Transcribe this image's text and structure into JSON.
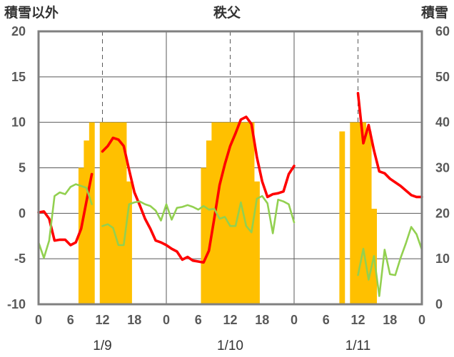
{
  "chart_data": {
    "type": "line",
    "title": "秩父",
    "left_axis_title": "積雪以外",
    "right_axis_title": "積雪",
    "y_left": {
      "ylim": [
        -10,
        20
      ],
      "ticks": [
        "20",
        "15",
        "10",
        "5",
        "0",
        "-5",
        "-10"
      ],
      "tick_values": [
        20,
        15,
        10,
        5,
        0,
        -5,
        -10
      ]
    },
    "y_right": {
      "ylim": [
        0,
        60
      ],
      "ticks": [
        "60",
        "50",
        "40",
        "30",
        "20",
        "10",
        "0"
      ],
      "tick_values": [
        60,
        50,
        40,
        30,
        20,
        10,
        0
      ]
    },
    "x_tick_labels": [
      "0",
      "6",
      "12",
      "18",
      "0",
      "6",
      "12",
      "18",
      "0",
      "6",
      "12",
      "18",
      "0"
    ],
    "x_tick_hours": [
      0,
      6,
      12,
      18,
      24,
      30,
      36,
      42,
      48,
      54,
      60,
      66,
      72
    ],
    "date_labels": [
      "1/9",
      "1/10",
      "1/11"
    ],
    "grid": true,
    "colors": {
      "temperature": "#ff0000",
      "other": "#92d050",
      "snow": "#ffc000",
      "baseline": "#7030a0",
      "frame": "#808080",
      "grid": "#595959"
    },
    "series": [
      {
        "type": "bar",
        "axis": "right",
        "color": "#ffc000",
        "x": [
          8,
          9,
          10,
          12,
          13,
          14,
          15,
          16,
          17,
          31,
          32,
          33,
          34,
          35,
          36,
          37,
          38,
          39,
          40,
          41,
          57,
          59,
          60,
          61,
          62,
          63
        ],
        "values": [
          30,
          36,
          40,
          40,
          40,
          40,
          40,
          40,
          27,
          30,
          36,
          40,
          40,
          40,
          40,
          40,
          40,
          40,
          40,
          27,
          38,
          40,
          40,
          40,
          38,
          21
        ]
      },
      {
        "type": "line",
        "axis": "left",
        "color": "#ff0000",
        "segments": [
          {
            "x": [
              0,
              1,
              2,
              3,
              4,
              5,
              6,
              7,
              8,
              9,
              10
            ],
            "values": [
              0.1,
              0.2,
              -0.6,
              -3.0,
              -2.9,
              -2.9,
              -3.5,
              -3.2,
              -1.7,
              1.3,
              4.3
            ]
          },
          {
            "x": [
              12,
              13,
              14,
              15,
              16,
              17,
              18,
              19,
              20,
              21,
              22,
              23,
              24,
              25,
              26,
              27,
              28,
              29,
              30,
              31,
              32,
              33,
              34,
              35,
              36,
              37,
              38,
              39,
              40,
              41,
              42,
              43,
              44,
              45,
              46,
              47,
              48
            ],
            "values": [
              6.8,
              7.4,
              8.3,
              8.1,
              7.4,
              4.8,
              2.3,
              0.9,
              -0.6,
              -1.7,
              -3.0,
              -3.2,
              -3.5,
              -3.9,
              -4.2,
              -5.1,
              -4.8,
              -5.2,
              -5.3,
              -5.4,
              -4.1,
              -0.6,
              3.1,
              5.4,
              7.4,
              8.8,
              10.3,
              10.6,
              9.8,
              6.2,
              3.5,
              1.8,
              2.1,
              2.2,
              2.4,
              4.3,
              5.2
            ]
          },
          {
            "x": [
              60,
              61,
              62,
              63,
              64,
              65,
              66,
              67,
              68,
              69,
              70,
              71,
              72
            ],
            "values": [
              13.2,
              7.7,
              9.7,
              6.9,
              4.6,
              4.4,
              3.8,
              3.4,
              3.0,
              2.5,
              2.0,
              1.8,
              1.8
            ]
          }
        ]
      },
      {
        "type": "line",
        "axis": "left",
        "color": "#92d050",
        "segments": [
          {
            "x": [
              0,
              1,
              2,
              3,
              4,
              5,
              6,
              7,
              8,
              9,
              10
            ],
            "values": [
              -3.2,
              -4.9,
              -3.0,
              1.9,
              2.3,
              2.1,
              2.9,
              3.2,
              3.0,
              2.8,
              1.0
            ]
          },
          {
            "x": [
              12,
              13,
              14,
              15,
              16,
              17,
              18,
              19,
              20,
              21,
              22,
              23,
              24,
              25,
              26,
              27,
              28,
              29,
              30,
              31,
              32,
              33,
              34,
              35,
              36,
              37,
              38,
              39,
              40,
              41,
              42,
              43,
              44,
              45,
              46,
              47,
              48
            ],
            "values": [
              -1.4,
              -1.2,
              -1.6,
              -3.5,
              -3.5,
              1.0,
              1.2,
              1.3,
              1.0,
              0.8,
              0.3,
              -0.8,
              1.0,
              -0.7,
              0.6,
              0.7,
              0.9,
              0.7,
              0.4,
              0.8,
              0.4,
              0.5,
              -0.6,
              -0.4,
              -1.4,
              -1.4,
              1.2,
              -1.4,
              -2.1,
              1.6,
              1.9,
              1.1,
              -2.2,
              1.5,
              1.3,
              1.0,
              -1.0
            ]
          },
          {
            "x": [
              60,
              61,
              62,
              63,
              64,
              65,
              66,
              67,
              68,
              69,
              70,
              71,
              72
            ],
            "values": [
              -6.8,
              -3.9,
              -7.3,
              -4.7,
              -9.1,
              -4.0,
              -6.7,
              -6.8,
              -4.9,
              -3.3,
              -1.5,
              -2.3,
              -4.0
            ]
          }
        ]
      },
      {
        "type": "line",
        "axis": "left",
        "color": "#7030a0",
        "segments": [
          {
            "x": [
              0,
              72
            ],
            "values": [
              -10,
              -10
            ]
          }
        ]
      }
    ]
  }
}
